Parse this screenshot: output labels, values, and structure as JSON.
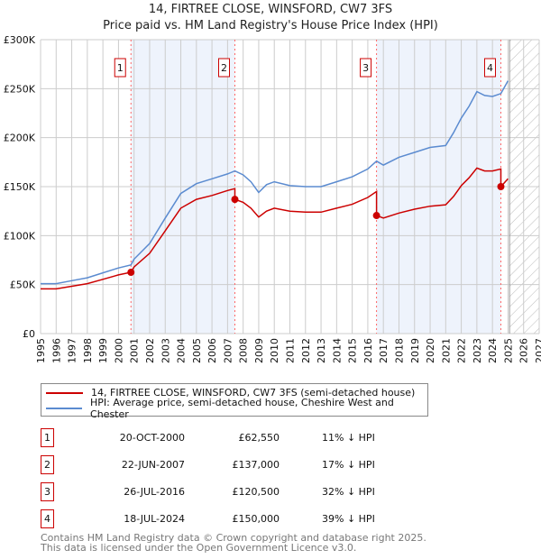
{
  "title": "14, FIRTREE CLOSE, WINSFORD, CW7 3FS",
  "subtitle": "Price paid vs. HM Land Registry's House Price Index (HPI)",
  "chart_data": {
    "type": "line",
    "xlim": [
      1995,
      2027
    ],
    "ylim": [
      0,
      300000
    ],
    "yticks": [
      {
        "v": 0,
        "label": "£0"
      },
      {
        "v": 50000,
        "label": "£50K"
      },
      {
        "v": 100000,
        "label": "£100K"
      },
      {
        "v": 150000,
        "label": "£150K"
      },
      {
        "v": 200000,
        "label": "£200K"
      },
      {
        "v": 250000,
        "label": "£250K"
      },
      {
        "v": 300000,
        "label": "£300K"
      }
    ],
    "xticks": [
      "1995",
      "1996",
      "1997",
      "1998",
      "1999",
      "2000",
      "2001",
      "2002",
      "2003",
      "2004",
      "2005",
      "2006",
      "2007",
      "2008",
      "2009",
      "2010",
      "2011",
      "2012",
      "2013",
      "2014",
      "2015",
      "2016",
      "2017",
      "2018",
      "2019",
      "2020",
      "2021",
      "2022",
      "2023",
      "2024",
      "2025",
      "2026",
      "2027"
    ],
    "forecast_from": 2025.1,
    "series": [
      {
        "name": "14, FIRTREE CLOSE, WINSFORD, CW7 3FS (semi-detached house)",
        "color": "#cc0000",
        "points": [
          [
            1995,
            45600
          ],
          [
            1996,
            45600
          ],
          [
            1997,
            48300
          ],
          [
            1998,
            51000
          ],
          [
            1999,
            55400
          ],
          [
            2000,
            59900
          ],
          [
            2000.8,
            62550
          ],
          [
            2001,
            68000
          ],
          [
            2002,
            82000
          ],
          [
            2003,
            105000
          ],
          [
            2004,
            128000
          ],
          [
            2005,
            137000
          ],
          [
            2006,
            141000
          ],
          [
            2007,
            146000
          ],
          [
            2007.47,
            148000
          ],
          [
            2007.47,
            137000
          ],
          [
            2008,
            134000
          ],
          [
            2008.5,
            128000
          ],
          [
            2009,
            119000
          ],
          [
            2009.5,
            125000
          ],
          [
            2010,
            128000
          ],
          [
            2011,
            125000
          ],
          [
            2012,
            124000
          ],
          [
            2013,
            124000
          ],
          [
            2014,
            128000
          ],
          [
            2015,
            132000
          ],
          [
            2016,
            139000
          ],
          [
            2016.56,
            145000
          ],
          [
            2016.56,
            120500
          ],
          [
            2017,
            118000
          ],
          [
            2018,
            123000
          ],
          [
            2019,
            127000
          ],
          [
            2020,
            130000
          ],
          [
            2021,
            131500
          ],
          [
            2021.5,
            140000
          ],
          [
            2022,
            151000
          ],
          [
            2022.5,
            159000
          ],
          [
            2023,
            169000
          ],
          [
            2023.5,
            166000
          ],
          [
            2024,
            166000
          ],
          [
            2024.54,
            168000
          ],
          [
            2024.54,
            150000
          ],
          [
            2025,
            158000
          ]
        ]
      },
      {
        "name": "HPI: Average price, semi-detached house, Cheshire West and Chester",
        "color": "#5b8bd0",
        "points": [
          [
            1995,
            51000
          ],
          [
            1996,
            51000
          ],
          [
            1997,
            54000
          ],
          [
            1998,
            57000
          ],
          [
            1999,
            62000
          ],
          [
            2000,
            67000
          ],
          [
            2000.8,
            70000
          ],
          [
            2001,
            76000
          ],
          [
            2002,
            92000
          ],
          [
            2003,
            118000
          ],
          [
            2004,
            143000
          ],
          [
            2005,
            153000
          ],
          [
            2006,
            158000
          ],
          [
            2007,
            163000
          ],
          [
            2007.47,
            166000
          ],
          [
            2008,
            162000
          ],
          [
            2008.5,
            155000
          ],
          [
            2009,
            144000
          ],
          [
            2009.5,
            152000
          ],
          [
            2010,
            155000
          ],
          [
            2011,
            151000
          ],
          [
            2012,
            150000
          ],
          [
            2013,
            150000
          ],
          [
            2014,
            155000
          ],
          [
            2015,
            160000
          ],
          [
            2016,
            168000
          ],
          [
            2016.56,
            176000
          ],
          [
            2017,
            172000
          ],
          [
            2018,
            180000
          ],
          [
            2019,
            185000
          ],
          [
            2020,
            190000
          ],
          [
            2021,
            192000
          ],
          [
            2021.5,
            205000
          ],
          [
            2022,
            220000
          ],
          [
            2022.5,
            232000
          ],
          [
            2023,
            247000
          ],
          [
            2023.5,
            243000
          ],
          [
            2024,
            242000
          ],
          [
            2024.54,
            245000
          ],
          [
            2025,
            258000
          ]
        ]
      }
    ],
    "sales": [
      {
        "n": "1",
        "x": 2000.8,
        "price": 62550,
        "date": "20-OCT-2000",
        "price_label": "£62,550",
        "hpi": "11% ↓ HPI"
      },
      {
        "n": "2",
        "x": 2007.47,
        "price": 137000,
        "date": "22-JUN-2007",
        "price_label": "£137,000",
        "hpi": "17% ↓ HPI"
      },
      {
        "n": "3",
        "x": 2016.56,
        "price": 120500,
        "date": "26-JUL-2016",
        "price_label": "£120,500",
        "hpi": "32% ↓ HPI"
      },
      {
        "n": "4",
        "x": 2024.54,
        "price": 150000,
        "date": "18-JUL-2024",
        "price_label": "£150,000",
        "hpi": "39% ↓ HPI"
      }
    ]
  },
  "legend": {
    "red": "14, FIRTREE CLOSE, WINSFORD, CW7 3FS (semi-detached house)",
    "blue": "HPI: Average price, semi-detached house, Cheshire West and Chester"
  },
  "footer": [
    "Contains HM Land Registry data © Crown copyright and database right 2025.",
    "This data is licensed under the Open Government Licence v3.0."
  ]
}
